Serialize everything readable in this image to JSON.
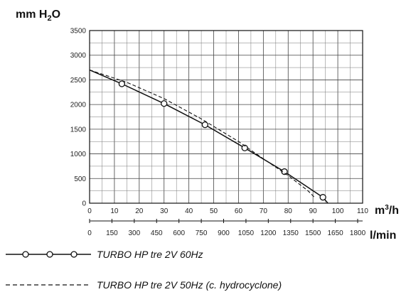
{
  "chart_data": {
    "type": "line",
    "ylabel": {
      "main": "mm H",
      "sub": "2",
      "tail": "O"
    },
    "x_unit_primary": {
      "main": "m",
      "sup": "3",
      "tail": "/h"
    },
    "x_unit_secondary": "l/min",
    "xlim": [
      0,
      110
    ],
    "ylim": [
      0,
      3500
    ],
    "x_ticks": [
      "0",
      "10",
      "20",
      "30",
      "40",
      "50",
      "60",
      "70",
      "80",
      "90",
      "100",
      "110"
    ],
    "y_ticks": [
      "0",
      "500",
      "1000",
      "1500",
      "2000",
      "2500",
      "3000",
      "3500"
    ],
    "x_secondary_ticks": [
      "0",
      "150",
      "300",
      "450",
      "600",
      "750",
      "900",
      "1050",
      "1200",
      "1350",
      "1500",
      "1650",
      "1800"
    ],
    "grid": true,
    "legend_position": "bottom-left",
    "series": [
      {
        "name": "TURBO HP tre 2V 60Hz",
        "style": "solid-with-circle-markers",
        "x": [
          0,
          13,
          30,
          46.5,
          62.5,
          78.5,
          94,
          96
        ],
        "y": [
          2700,
          2420,
          2020,
          1590,
          1120,
          640,
          120,
          0
        ],
        "markers_x": [
          13,
          30,
          46.5,
          62.5,
          78.5,
          94
        ],
        "markers_y": [
          2420,
          2020,
          1590,
          1120,
          640,
          120
        ]
      },
      {
        "name": "TURBO HP tre 2V 50Hz (c. hydrocyclone)",
        "style": "dashed",
        "x": [
          0,
          15,
          30,
          45,
          60,
          70,
          80,
          88,
          91
        ],
        "y": [
          2700,
          2450,
          2120,
          1710,
          1250,
          900,
          560,
          250,
          100
        ]
      }
    ]
  }
}
